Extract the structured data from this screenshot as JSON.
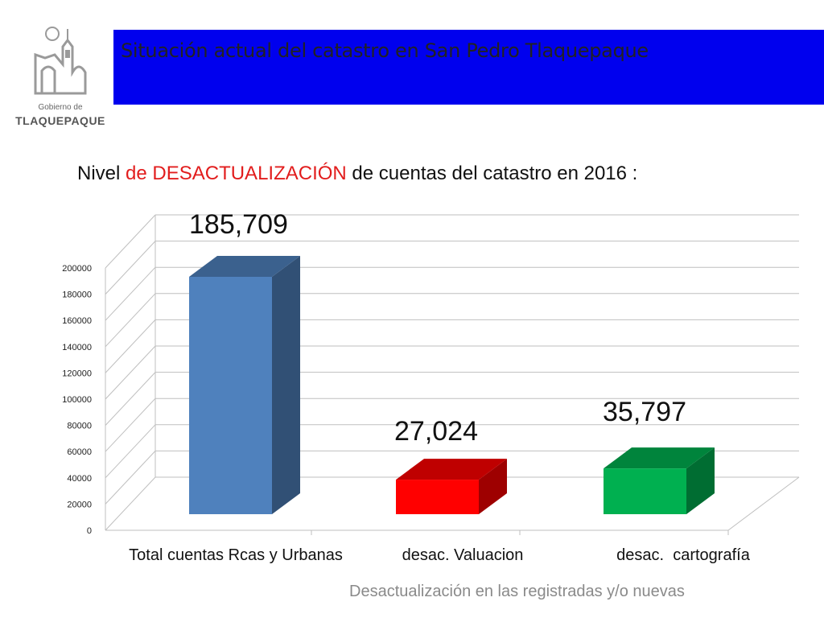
{
  "header": {
    "title": "Situación actual del catastro en San Pedro Tlaquepaque",
    "banner_color": "#0000ee"
  },
  "logo": {
    "icon": "church-tower-icon",
    "line1": "Gobierno de",
    "line2": "TLAQUEPAQUE"
  },
  "subtitle": {
    "part1": "Nivel ",
    "part2": "de DESACTUALIZACIÓN",
    "part3": "  de cuentas del catastro en 2016 :",
    "highlight_color": "#e21d1d"
  },
  "chart_data": {
    "type": "bar",
    "categories": [
      "Total cuentas Rcas y Urbanas",
      "desac. Valuacion",
      "desac.  cartografía"
    ],
    "values": [
      185709,
      27024,
      35797
    ],
    "data_labels": [
      "185,709",
      "27,024",
      "35,797"
    ],
    "colors": [
      "#4f81bd",
      "#ff0000",
      "#00b050"
    ],
    "ylim": [
      0,
      200000
    ],
    "yticks": [
      "0",
      "20000",
      "40000",
      "60000",
      "80000",
      "100000",
      "120000",
      "140000",
      "160000",
      "180000",
      "200000"
    ],
    "grid": true,
    "style": "3d-column",
    "xlabel": "Desactualización en las registradas  y/o nuevas"
  }
}
